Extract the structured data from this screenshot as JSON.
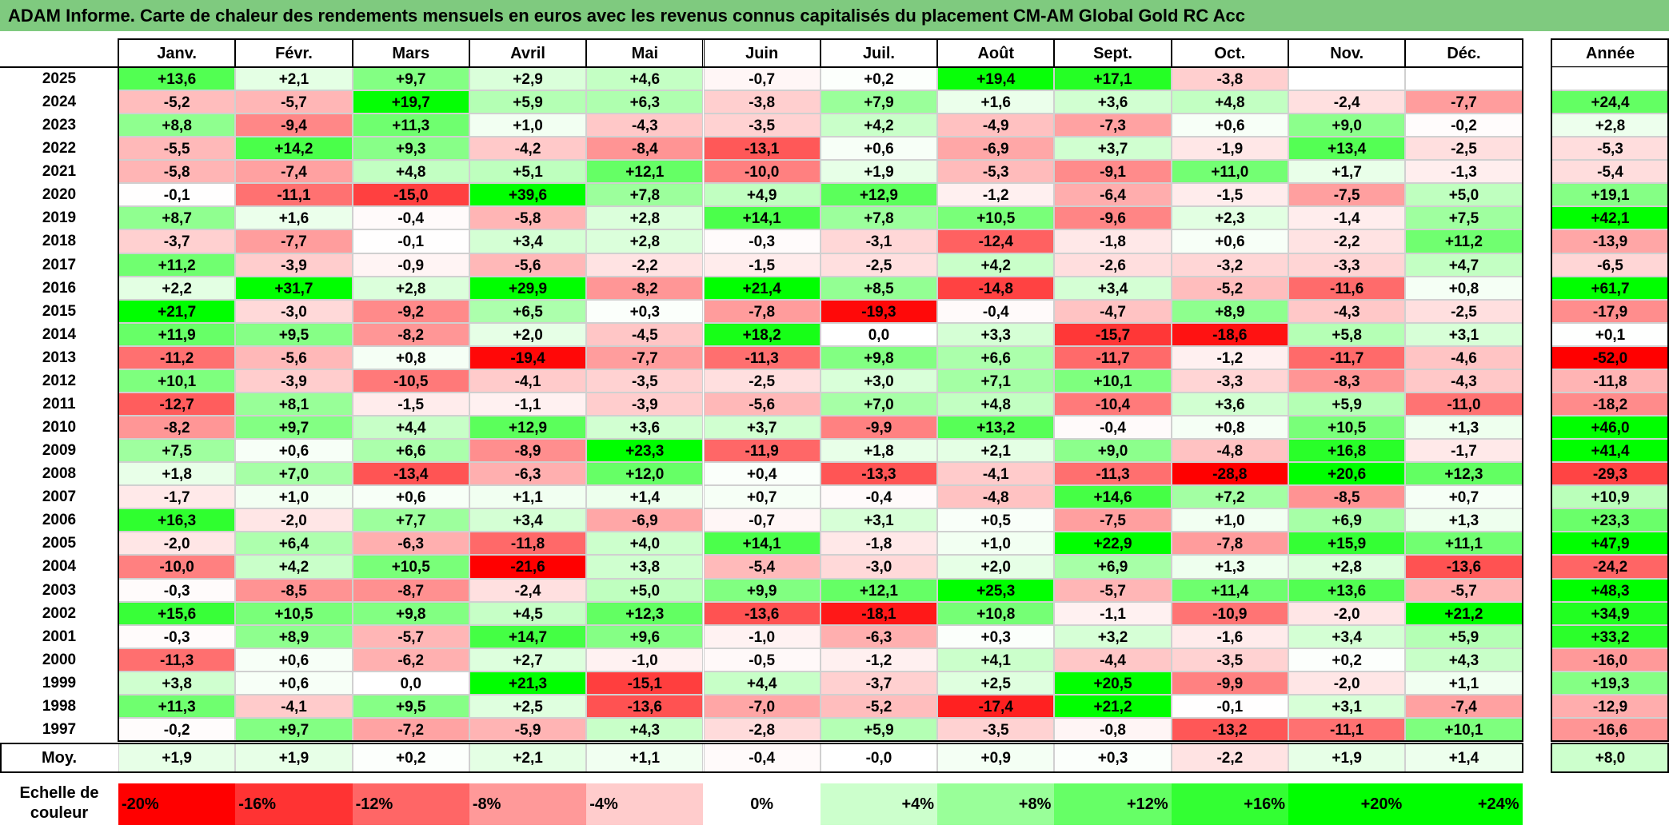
{
  "title": "ADAM Informe. Carte de chaleur des rendements mensuels en euros avec les revenus connus capitalisés du placement CM-AM Global Gold RC Acc",
  "chart_data": {
    "type": "heatmap",
    "title": "ADAM Informe. Carte de chaleur des rendements mensuels en euros avec les revenus connus capitalisés du placement CM-AM Global Gold RC Acc",
    "months": [
      "Janv.",
      "Févr.",
      "Mars",
      "Avril",
      "Mai",
      "Juin",
      "Juil.",
      "Août",
      "Sept.",
      "Oct.",
      "Nov.",
      "Déc."
    ],
    "year_header": "Année",
    "years": [
      "2025",
      "2024",
      "2023",
      "2022",
      "2021",
      "2020",
      "2019",
      "2018",
      "2017",
      "2016",
      "2015",
      "2014",
      "2013",
      "2012",
      "2011",
      "2010",
      "2009",
      "2008",
      "2007",
      "2006",
      "2005",
      "2004",
      "2003",
      "2002",
      "2001",
      "2000",
      "1999",
      "1998",
      "1997"
    ],
    "values": [
      [
        "+13,6",
        "+2,1",
        "+9,7",
        "+2,9",
        "+4,6",
        "-0,7",
        "+0,2",
        "+19,4",
        "+17,1",
        "-3,8",
        "",
        ""
      ],
      [
        "-5,2",
        "-5,7",
        "+19,7",
        "+5,9",
        "+6,3",
        "-3,8",
        "+7,9",
        "+1,6",
        "+3,6",
        "+4,8",
        "-2,4",
        "-7,7"
      ],
      [
        "+8,8",
        "-9,4",
        "+11,3",
        "+1,0",
        "-4,3",
        "-3,5",
        "+4,2",
        "-4,9",
        "-7,3",
        "+0,6",
        "+9,0",
        "-0,2"
      ],
      [
        "-5,5",
        "+14,2",
        "+9,3",
        "-4,2",
        "-8,4",
        "-13,1",
        "+0,6",
        "-6,9",
        "+3,7",
        "-1,9",
        "+13,4",
        "-2,5"
      ],
      [
        "-5,8",
        "-7,4",
        "+4,8",
        "+5,1",
        "+12,1",
        "-10,0",
        "+1,9",
        "-5,3",
        "-9,1",
        "+11,0",
        "+1,7",
        "-1,3"
      ],
      [
        "-0,1",
        "-11,1",
        "-15,0",
        "+39,6",
        "+7,8",
        "+4,9",
        "+12,9",
        "-1,2",
        "-6,4",
        "-1,5",
        "-7,5",
        "+5,0"
      ],
      [
        "+8,7",
        "+1,6",
        "-0,4",
        "-5,8",
        "+2,8",
        "+14,1",
        "+7,8",
        "+10,5",
        "-9,6",
        "+2,3",
        "-1,4",
        "+7,5"
      ],
      [
        "-3,7",
        "-7,7",
        "-0,1",
        "+3,4",
        "+2,8",
        "-0,3",
        "-3,1",
        "-12,4",
        "-1,8",
        "+0,6",
        "-2,2",
        "+11,2"
      ],
      [
        "+11,2",
        "-3,9",
        "-0,9",
        "-5,6",
        "-2,2",
        "-1,5",
        "-2,5",
        "+4,2",
        "-2,6",
        "-3,2",
        "-3,3",
        "+4,7"
      ],
      [
        "+2,2",
        "+31,7",
        "+2,8",
        "+29,9",
        "-8,2",
        "+21,4",
        "+8,5",
        "-14,8",
        "+3,4",
        "-5,2",
        "-11,6",
        "+0,8"
      ],
      [
        "+21,7",
        "-3,0",
        "-9,2",
        "+6,5",
        "+0,3",
        "-7,8",
        "-19,3",
        "-0,4",
        "-4,7",
        "+8,9",
        "-4,3",
        "-2,5"
      ],
      [
        "+11,9",
        "+9,5",
        "-8,2",
        "+2,0",
        "-4,5",
        "+18,2",
        "0,0",
        "+3,3",
        "-15,7",
        "-18,6",
        "+5,8",
        "+3,1"
      ],
      [
        "-11,2",
        "-5,6",
        "+0,8",
        "-19,4",
        "-7,7",
        "-11,3",
        "+9,8",
        "+6,6",
        "-11,7",
        "-1,2",
        "-11,7",
        "-4,6"
      ],
      [
        "+10,1",
        "-3,9",
        "-10,5",
        "-4,1",
        "-3,5",
        "-2,5",
        "+3,0",
        "+7,1",
        "+10,1",
        "-3,3",
        "-8,3",
        "-4,3"
      ],
      [
        "-12,7",
        "+8,1",
        "-1,5",
        "-1,1",
        "-3,9",
        "-5,6",
        "+7,0",
        "+4,8",
        "-10,4",
        "+3,6",
        "+5,9",
        "-11,0"
      ],
      [
        "-8,2",
        "+9,7",
        "+4,4",
        "+12,9",
        "+3,6",
        "+3,7",
        "-9,9",
        "+13,2",
        "-0,4",
        "+0,8",
        "+10,5",
        "+1,3"
      ],
      [
        "+7,5",
        "+0,6",
        "+6,6",
        "-8,9",
        "+23,3",
        "-11,9",
        "+1,8",
        "+2,1",
        "+9,0",
        "-4,8",
        "+16,8",
        "-1,7"
      ],
      [
        "+1,8",
        "+7,0",
        "-13,4",
        "-6,3",
        "+12,0",
        "+0,4",
        "-13,3",
        "-4,1",
        "-11,3",
        "-28,8",
        "+20,6",
        "+12,3"
      ],
      [
        "-1,7",
        "+1,0",
        "+0,6",
        "+1,1",
        "+1,4",
        "+0,7",
        "-0,4",
        "-4,8",
        "+14,6",
        "+7,2",
        "-8,5",
        "+0,7"
      ],
      [
        "+16,3",
        "-2,0",
        "+7,7",
        "+3,4",
        "-6,9",
        "-0,7",
        "+3,1",
        "+0,5",
        "-7,5",
        "+1,0",
        "+6,9",
        "+1,3"
      ],
      [
        "-2,0",
        "+6,4",
        "-6,3",
        "-11,8",
        "+4,0",
        "+14,1",
        "-1,8",
        "+1,0",
        "+22,9",
        "-7,8",
        "+15,9",
        "+11,1"
      ],
      [
        "-10,0",
        "+4,2",
        "+10,5",
        "-21,6",
        "+3,8",
        "-5,4",
        "-3,0",
        "+2,0",
        "+6,9",
        "+1,3",
        "+2,8",
        "-13,6"
      ],
      [
        "-0,3",
        "-8,5",
        "-8,7",
        "-2,4",
        "+5,0",
        "+9,9",
        "+12,1",
        "+25,3",
        "-5,7",
        "+11,4",
        "+13,6",
        "-5,7"
      ],
      [
        "+15,6",
        "+10,5",
        "+9,8",
        "+4,5",
        "+12,3",
        "-13,6",
        "-18,1",
        "+10,8",
        "-1,1",
        "-10,9",
        "-2,0",
        "+21,2"
      ],
      [
        "-0,3",
        "+8,9",
        "-5,7",
        "+14,7",
        "+9,6",
        "-1,0",
        "-6,3",
        "+0,3",
        "+3,2",
        "-1,6",
        "+3,4",
        "+5,9"
      ],
      [
        "-11,3",
        "+0,6",
        "-6,2",
        "+2,7",
        "-1,0",
        "-0,5",
        "-1,2",
        "+4,1",
        "-4,4",
        "-3,5",
        "+0,2",
        "+4,3"
      ],
      [
        "+3,8",
        "+0,6",
        "0,0",
        "+21,3",
        "-15,1",
        "+4,4",
        "-3,7",
        "+2,5",
        "+20,5",
        "-9,9",
        "-2,0",
        "+1,1"
      ],
      [
        "+11,3",
        "-4,1",
        "+9,5",
        "+2,5",
        "-13,6",
        "-7,0",
        "-5,2",
        "-17,4",
        "+21,2",
        "-0,1",
        "+3,1",
        "-7,4"
      ],
      [
        "-0,2",
        "+9,7",
        "-7,2",
        "-5,9",
        "+4,3",
        "-2,8",
        "+5,9",
        "-3,5",
        "-0,8",
        "-13,2",
        "-11,1",
        "+10,1"
      ]
    ],
    "annual": [
      "",
      "+24,4",
      "+2,8",
      "-5,3",
      "-5,4",
      "+19,1",
      "+42,1",
      "-13,9",
      "-6,5",
      "+61,7",
      "-17,9",
      "+0,1",
      "-52,0",
      "-11,8",
      "-18,2",
      "+46,0",
      "+41,4",
      "-29,3",
      "+10,9",
      "+23,3",
      "+47,9",
      "-24,2",
      "+48,3",
      "+34,9",
      "+33,2",
      "-16,0",
      "+19,3",
      "-12,9",
      "-16,6"
    ],
    "average_label": "Moy.",
    "average": [
      "+1,9",
      "+1,9",
      "+0,2",
      "+2,1",
      "+1,1",
      "-0,4",
      "-0,0",
      "+0,9",
      "+0,3",
      "-2,2",
      "+1,9",
      "+1,4"
    ],
    "average_annual": "+8,0",
    "scale_label": "Echelle de couleur",
    "scale": [
      "-20%",
      "-16%",
      "-12%",
      "-8%",
      "-4%",
      "0%",
      "+4%",
      "+8%",
      "+12%",
      "+16%",
      "+20%",
      "+24%"
    ],
    "colors": {
      "max_red": "#ff0000",
      "neutral": "#ffffff",
      "max_green": "#00ff00",
      "title_bg": "#7fca7f"
    }
  }
}
